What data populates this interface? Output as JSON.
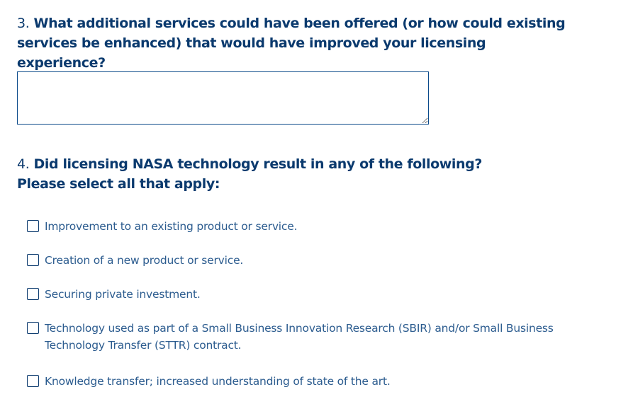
{
  "q3": {
    "number": "3.",
    "text": "What additional services could have been offered (or how could existing services be enhanced) that would have improved your licensing experience?",
    "answer": ""
  },
  "q4": {
    "number": "4.",
    "text": "Did licensing NASA technology result in any of the following?",
    "subtext": "Please select all that apply:",
    "options": [
      {
        "label": "Improvement to an existing product or service.",
        "checked": false
      },
      {
        "label": "Creation of a new product or service.",
        "checked": false
      },
      {
        "label": "Securing private investment.",
        "checked": false
      },
      {
        "label": "Technology used as part of a Small Business Innovation Research (SBIR) and/or Small Business Technology Transfer (STTR) contract.",
        "checked": false
      },
      {
        "label": "Knowledge transfer; increased understanding of state of the art.",
        "checked": false
      }
    ]
  }
}
